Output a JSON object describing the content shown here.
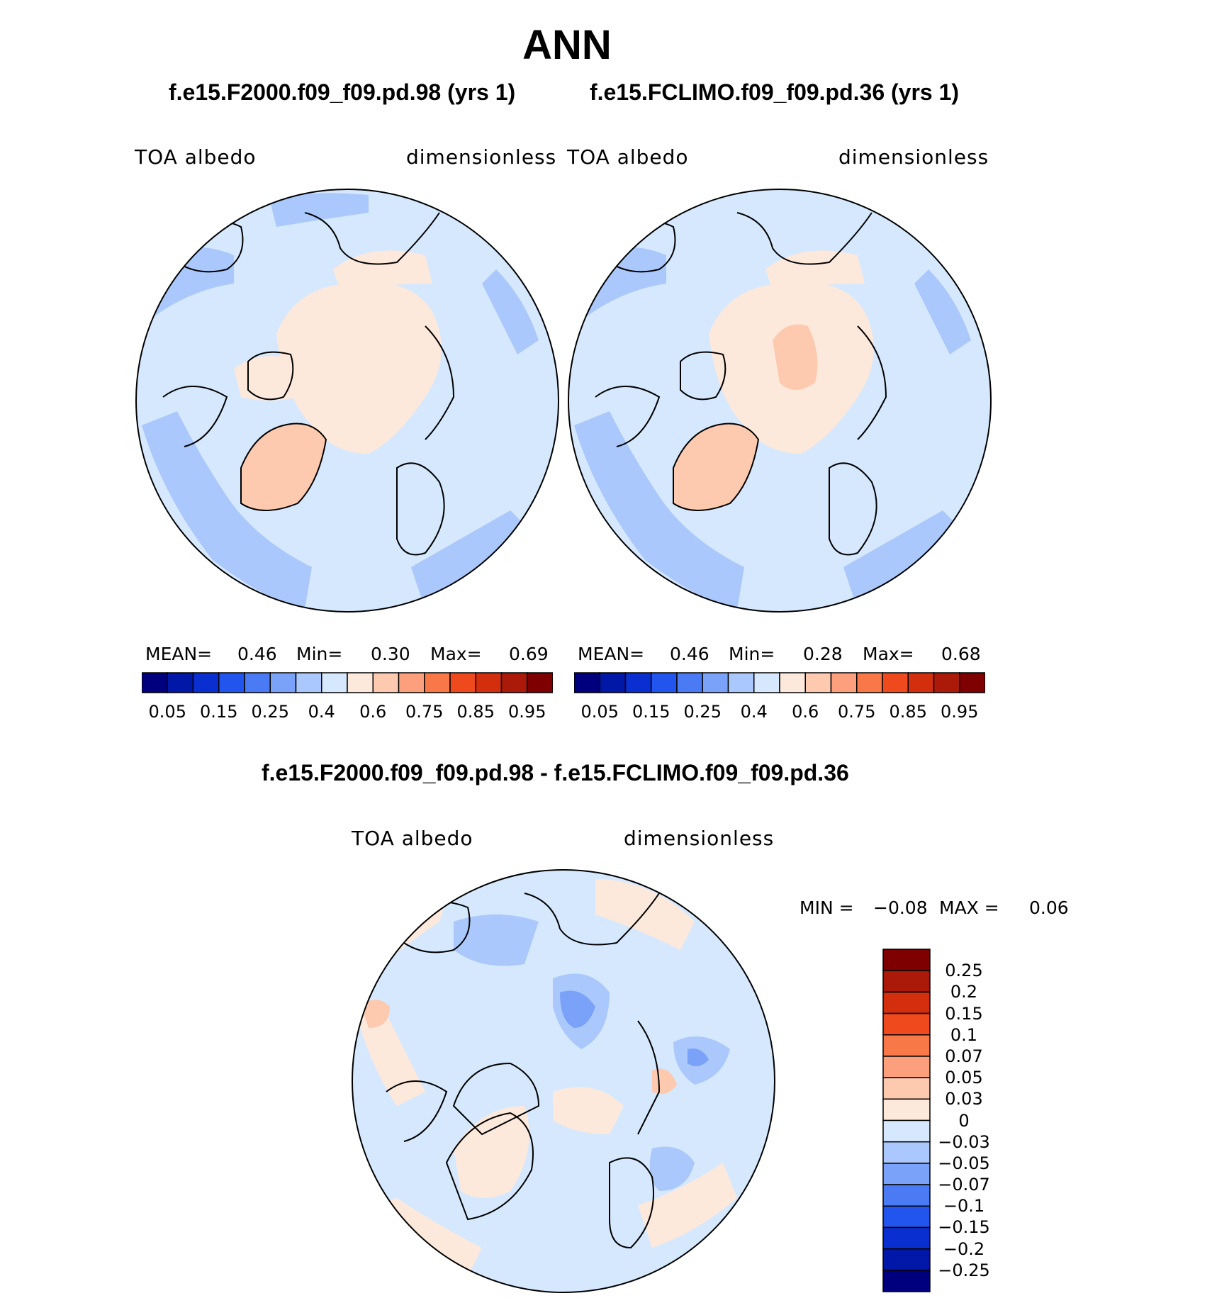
{
  "title": "ANN",
  "panels": [
    {
      "case_title": "f.e15.F2000.f09_f09.pd.98 (yrs 1)",
      "variable": "TOA  albedo",
      "units": "dimensionless",
      "stats": {
        "mean_label": "MEAN=",
        "mean": "0.46",
        "min_label": "Min=",
        "min": "0.30",
        "max_label": "Max=",
        "max": "0.69"
      },
      "field_level": "mid"
    },
    {
      "case_title": "f.e15.FCLIMO.f09_f09.pd.36 (yrs 1)",
      "variable": "TOA  albedo",
      "units": "dimensionless",
      "stats": {
        "mean_label": "MEAN=",
        "mean": "0.46",
        "min_label": "Min=",
        "min": "0.28",
        "max_label": "Max=",
        "max": "0.68"
      },
      "field_level": "mid"
    }
  ],
  "abs_colorbar": {
    "colors": [
      "#00007f",
      "#0017a8",
      "#0a2fd0",
      "#2255ee",
      "#4a7af4",
      "#7aa2f8",
      "#aac8fb",
      "#d6e8fd",
      "#fde9dc",
      "#fdcab0",
      "#fc9f7d",
      "#f97848",
      "#ee4a1e",
      "#d32f0f",
      "#ab1a09",
      "#7f0000"
    ],
    "ticks": [
      "0.05",
      "0.15",
      "0.25",
      "0.4",
      "0.6",
      "0.75",
      "0.85",
      "0.95"
    ]
  },
  "diff_panel": {
    "title": "f.e15.F2000.f09_f09.pd.98 - f.e15.FCLIMO.f09_f09.pd.36",
    "variable": "TOA  albedo",
    "units": "dimensionless",
    "stats": {
      "min_label": "MIN =",
      "min": "−0.08",
      "max_label": "MAX =",
      "max": "0.06"
    }
  },
  "diff_colorbar": {
    "colors": [
      "#7f0000",
      "#ab1a09",
      "#d32f0f",
      "#ee4a1e",
      "#f97848",
      "#fc9f7d",
      "#fdcab0",
      "#fde9dc",
      "#d6e8fd",
      "#aac8fb",
      "#7aa2f8",
      "#4a7af4",
      "#2255ee",
      "#0a2fd0",
      "#0017a8",
      "#00007f"
    ],
    "ticks": [
      "0.25",
      "0.2",
      "0.15",
      "0.1",
      "0.07",
      "0.05",
      "0.03",
      "0",
      "−0.03",
      "−0.05",
      "−0.07",
      "−0.1",
      "−0.15",
      "−0.2",
      "−0.25"
    ]
  },
  "map_colors": {
    "ocean_mid": "#d6e8fd",
    "ocean_low": "#aac8fb",
    "land_high": "#fde9dc",
    "greenland": "#fdcab0",
    "diff_pos": "#fde9dc",
    "diff_neg": "#d6e8fd",
    "diff_neg2": "#aac8fb",
    "diff_neg3": "#7aa2f8"
  }
}
